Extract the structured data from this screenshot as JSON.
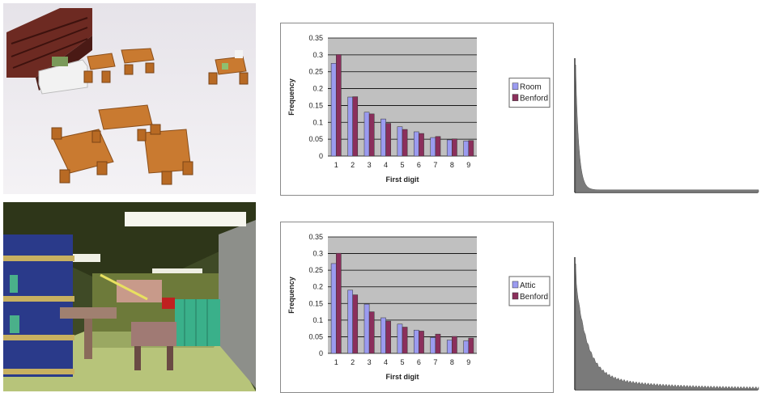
{
  "chart_data": [
    {
      "type": "bar",
      "categories": [
        "1",
        "2",
        "3",
        "4",
        "5",
        "6",
        "7",
        "8",
        "9"
      ],
      "series": [
        {
          "name": "Room",
          "values": [
            0.275,
            0.175,
            0.13,
            0.11,
            0.087,
            0.072,
            0.055,
            0.048,
            0.045
          ],
          "color": "#9b9bf0"
        },
        {
          "name": "Benford",
          "values": [
            0.301,
            0.176,
            0.125,
            0.097,
            0.079,
            0.067,
            0.058,
            0.051,
            0.046
          ],
          "color": "#8b2f5c"
        }
      ],
      "xlabel": "First digit",
      "ylabel": "Frequency",
      "ylim": [
        0,
        0.35
      ],
      "yticks": [
        "0",
        "0.05",
        "0.1",
        "0.15",
        "0.2",
        "0.25",
        "0.3",
        "0.35"
      ],
      "grid": true,
      "legend": "right"
    },
    {
      "type": "bar",
      "categories": [
        "1",
        "2",
        "3",
        "4",
        "5",
        "6",
        "7",
        "8",
        "9"
      ],
      "series": [
        {
          "name": "Attic",
          "values": [
            0.27,
            0.19,
            0.148,
            0.107,
            0.088,
            0.07,
            0.048,
            0.04,
            0.038
          ],
          "color": "#9b9bf0"
        },
        {
          "name": "Benford",
          "values": [
            0.301,
            0.176,
            0.125,
            0.097,
            0.079,
            0.067,
            0.058,
            0.051,
            0.046
          ],
          "color": "#8b2f5c"
        }
      ],
      "xlabel": "First digit",
      "ylabel": "Frequency",
      "ylim": [
        0,
        0.35
      ],
      "yticks": [
        "0",
        "0.05",
        "0.1",
        "0.15",
        "0.2",
        "0.25",
        "0.3",
        "0.35"
      ],
      "grid": true,
      "legend": "right"
    }
  ],
  "histograms": [
    {
      "shape": "sharp-decay"
    },
    {
      "shape": "slow-decay"
    }
  ],
  "colors": {
    "plot_bg": "#c0c0c0",
    "gridline": "#000000",
    "hist_fill": "#7a7a7a"
  }
}
